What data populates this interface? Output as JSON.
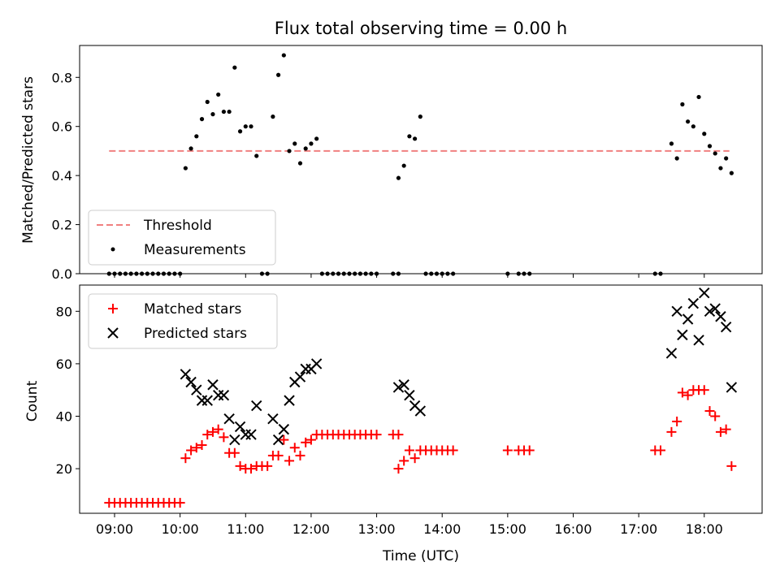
{
  "figure": {
    "title": "Flux total observing time = 0.00 h"
  },
  "chart_data": [
    {
      "type": "scatter",
      "panel": "top",
      "ylabel": "Matched/Predicted stars",
      "xlabel": "",
      "xlim": [
        "08:28",
        "18:53"
      ],
      "ylim": [
        0,
        0.93
      ],
      "yticks": [
        "0.0",
        "0.2",
        "0.4",
        "0.6",
        "0.8"
      ],
      "yticks_values": [
        0,
        0.2,
        0.4,
        0.6,
        0.8
      ],
      "xticks_values": [
        "09:00",
        "10:00",
        "11:00",
        "12:00",
        "13:00",
        "14:00",
        "15:00",
        "16:00",
        "17:00",
        "18:00"
      ],
      "grid": false,
      "legend_position": "lower-left",
      "threshold": {
        "name": "Threshold",
        "value": 0.5,
        "x": [
          "08:55",
          "18:23"
        ],
        "color": "#f08080"
      },
      "series": [
        {
          "name": "Measurements",
          "color": "#000000",
          "marker": "dot",
          "points": [
            [
              "08:55",
              0
            ],
            [
              "09:00",
              0
            ],
            [
              "09:05",
              0
            ],
            [
              "09:10",
              0
            ],
            [
              "09:15",
              0
            ],
            [
              "09:20",
              0
            ],
            [
              "09:25",
              0
            ],
            [
              "09:30",
              0
            ],
            [
              "09:35",
              0
            ],
            [
              "09:40",
              0
            ],
            [
              "09:45",
              0
            ],
            [
              "09:50",
              0
            ],
            [
              "09:55",
              0
            ],
            [
              "10:00",
              0
            ],
            [
              "10:05",
              0.43
            ],
            [
              "10:10",
              0.51
            ],
            [
              "10:15",
              0.56
            ],
            [
              "10:20",
              0.63
            ],
            [
              "10:25",
              0.7
            ],
            [
              "10:30",
              0.65
            ],
            [
              "10:35",
              0.73
            ],
            [
              "10:40",
              0.66
            ],
            [
              "10:45",
              0.66
            ],
            [
              "10:50",
              0.84
            ],
            [
              "10:55",
              0.58
            ],
            [
              "11:00",
              0.6
            ],
            [
              "11:05",
              0.6
            ],
            [
              "11:10",
              0.48
            ],
            [
              "11:15",
              0
            ],
            [
              "11:20",
              0
            ],
            [
              "11:25",
              0.64
            ],
            [
              "11:30",
              0.81
            ],
            [
              "11:35",
              0.89
            ],
            [
              "11:40",
              0.5
            ],
            [
              "11:45",
              0.53
            ],
            [
              "11:50",
              0.45
            ],
            [
              "11:55",
              0.51
            ],
            [
              "12:00",
              0.53
            ],
            [
              "12:05",
              0.55
            ],
            [
              "12:10",
              0
            ],
            [
              "12:15",
              0
            ],
            [
              "12:20",
              0
            ],
            [
              "12:25",
              0
            ],
            [
              "12:30",
              0
            ],
            [
              "12:35",
              0
            ],
            [
              "12:40",
              0
            ],
            [
              "12:45",
              0
            ],
            [
              "12:50",
              0
            ],
            [
              "12:55",
              0
            ],
            [
              "13:00",
              0
            ],
            [
              "13:15",
              0
            ],
            [
              "13:20",
              0
            ],
            [
              "13:20",
              0.39
            ],
            [
              "13:25",
              0.44
            ],
            [
              "13:30",
              0.56
            ],
            [
              "13:35",
              0.55
            ],
            [
              "13:40",
              0.64
            ],
            [
              "13:45",
              0
            ],
            [
              "13:50",
              0
            ],
            [
              "13:55",
              0
            ],
            [
              "14:00",
              0
            ],
            [
              "14:05",
              0
            ],
            [
              "14:10",
              0
            ],
            [
              "15:00",
              0
            ],
            [
              "15:10",
              0
            ],
            [
              "15:15",
              0
            ],
            [
              "15:20",
              0
            ],
            [
              "17:15",
              0
            ],
            [
              "17:20",
              0
            ],
            [
              "17:30",
              0.53
            ],
            [
              "17:35",
              0.47
            ],
            [
              "17:40",
              0.69
            ],
            [
              "17:45",
              0.62
            ],
            [
              "17:50",
              0.6
            ],
            [
              "17:55",
              0.72
            ],
            [
              "18:00",
              0.57
            ],
            [
              "18:05",
              0.52
            ],
            [
              "18:10",
              0.49
            ],
            [
              "18:15",
              0.43
            ],
            [
              "18:20",
              0.47
            ],
            [
              "18:25",
              0.41
            ]
          ]
        }
      ]
    },
    {
      "type": "scatter",
      "panel": "bottom",
      "ylabel": "Count",
      "xlabel": "Time (UTC)",
      "xlim": [
        "08:28",
        "18:53"
      ],
      "ylim": [
        3,
        90
      ],
      "yticks": [
        "20",
        "40",
        "60",
        "80"
      ],
      "yticks_values": [
        20,
        40,
        60,
        80
      ],
      "xticks": [
        "09:00",
        "10:00",
        "11:00",
        "12:00",
        "13:00",
        "14:00",
        "15:00",
        "16:00",
        "17:00",
        "18:00"
      ],
      "grid": false,
      "legend_position": "upper-left",
      "series": [
        {
          "name": "Matched stars",
          "color": "#ff0000",
          "marker": "plus",
          "points": [
            [
              "08:55",
              7
            ],
            [
              "09:00",
              7
            ],
            [
              "09:05",
              7
            ],
            [
              "09:10",
              7
            ],
            [
              "09:15",
              7
            ],
            [
              "09:20",
              7
            ],
            [
              "09:25",
              7
            ],
            [
              "09:30",
              7
            ],
            [
              "09:35",
              7
            ],
            [
              "09:40",
              7
            ],
            [
              "09:45",
              7
            ],
            [
              "09:50",
              7
            ],
            [
              "09:55",
              7
            ],
            [
              "10:00",
              7
            ],
            [
              "10:05",
              24
            ],
            [
              "10:10",
              27
            ],
            [
              "10:15",
              28
            ],
            [
              "10:20",
              29
            ],
            [
              "10:25",
              33
            ],
            [
              "10:30",
              34
            ],
            [
              "10:35",
              35
            ],
            [
              "10:40",
              32
            ],
            [
              "10:45",
              26
            ],
            [
              "10:50",
              26
            ],
            [
              "10:55",
              21
            ],
            [
              "11:00",
              20
            ],
            [
              "11:05",
              20
            ],
            [
              "11:10",
              21
            ],
            [
              "11:15",
              21
            ],
            [
              "11:20",
              21
            ],
            [
              "11:25",
              25
            ],
            [
              "11:30",
              25
            ],
            [
              "11:35",
              31
            ],
            [
              "11:40",
              23
            ],
            [
              "11:45",
              28
            ],
            [
              "11:50",
              25
            ],
            [
              "11:55",
              30
            ],
            [
              "12:00",
              31
            ],
            [
              "12:05",
              33
            ],
            [
              "12:10",
              33
            ],
            [
              "12:15",
              33
            ],
            [
              "12:20",
              33
            ],
            [
              "12:25",
              33
            ],
            [
              "12:30",
              33
            ],
            [
              "12:35",
              33
            ],
            [
              "12:40",
              33
            ],
            [
              "12:45",
              33
            ],
            [
              "12:50",
              33
            ],
            [
              "12:55",
              33
            ],
            [
              "13:00",
              33
            ],
            [
              "13:15",
              33
            ],
            [
              "13:20",
              33
            ],
            [
              "13:20",
              20
            ],
            [
              "13:25",
              23
            ],
            [
              "13:30",
              27
            ],
            [
              "13:35",
              24
            ],
            [
              "13:40",
              27
            ],
            [
              "13:45",
              27
            ],
            [
              "13:50",
              27
            ],
            [
              "13:55",
              27
            ],
            [
              "14:00",
              27
            ],
            [
              "14:05",
              27
            ],
            [
              "14:10",
              27
            ],
            [
              "15:00",
              27
            ],
            [
              "15:10",
              27
            ],
            [
              "15:15",
              27
            ],
            [
              "15:20",
              27
            ],
            [
              "17:15",
              27
            ],
            [
              "17:20",
              27
            ],
            [
              "17:30",
              34
            ],
            [
              "17:35",
              38
            ],
            [
              "17:40",
              49
            ],
            [
              "17:45",
              48
            ],
            [
              "17:50",
              50
            ],
            [
              "17:55",
              50
            ],
            [
              "18:00",
              50
            ],
            [
              "18:05",
              42
            ],
            [
              "18:10",
              40
            ],
            [
              "18:15",
              34
            ],
            [
              "18:20",
              35
            ],
            [
              "18:25",
              21
            ]
          ]
        },
        {
          "name": "Predicted stars",
          "color": "#000000",
          "marker": "x",
          "points": [
            [
              "10:05",
              56
            ],
            [
              "10:10",
              53
            ],
            [
              "10:15",
              50
            ],
            [
              "10:20",
              46
            ],
            [
              "10:25",
              46
            ],
            [
              "10:30",
              52
            ],
            [
              "10:35",
              48
            ],
            [
              "10:40",
              48
            ],
            [
              "10:45",
              39
            ],
            [
              "10:50",
              31
            ],
            [
              "10:55",
              36
            ],
            [
              "11:00",
              33
            ],
            [
              "11:05",
              33
            ],
            [
              "11:10",
              44
            ],
            [
              "11:25",
              39
            ],
            [
              "11:30",
              31
            ],
            [
              "11:35",
              35
            ],
            [
              "11:40",
              46
            ],
            [
              "11:45",
              53
            ],
            [
              "11:50",
              55
            ],
            [
              "11:55",
              58
            ],
            [
              "12:00",
              58
            ],
            [
              "12:05",
              60
            ],
            [
              "13:20",
              51
            ],
            [
              "13:25",
              52
            ],
            [
              "13:30",
              48
            ],
            [
              "13:35",
              44
            ],
            [
              "13:40",
              42
            ],
            [
              "17:30",
              64
            ],
            [
              "17:35",
              80
            ],
            [
              "17:40",
              71
            ],
            [
              "17:45",
              77
            ],
            [
              "17:50",
              83
            ],
            [
              "17:55",
              69
            ],
            [
              "18:00",
              87
            ],
            [
              "18:05",
              80
            ],
            [
              "18:10",
              81
            ],
            [
              "18:15",
              78
            ],
            [
              "18:20",
              74
            ],
            [
              "18:25",
              51
            ]
          ]
        }
      ]
    }
  ]
}
